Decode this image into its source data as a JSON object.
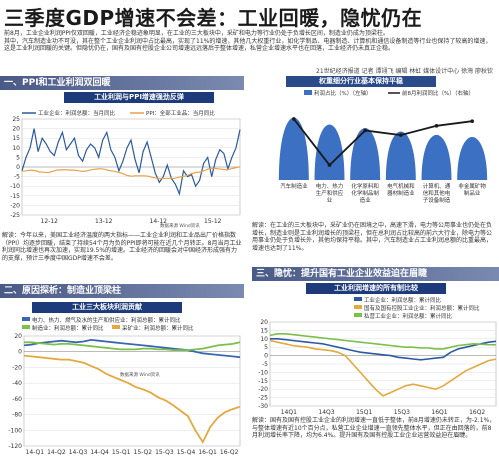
{
  "header": {
    "title": "三季度GDP增速不会差：工业回暖，隐忧仍在",
    "intro": [
      "前8月，工业企业利润PPI仅双回暖，工业经济企稳迹象明显，在工业的三大板块中，采矿和电力等行业仍处于负增长区间，制造业仍成为顶梁柱。",
      "其中，汽车制造业功不可没，其在整个工业企业利润中占比最高，实现了11%的增速，其他几大权重行业，如化学制品、电器制造、计算机和通信设备制造等行业也保持了较高的增速，这是工业利润回暖的关键。但隐忧仍在，国有及国有控股企业公司增速远远落后于整体增速，私营企业增速水平也在回落，工业经济仍未真正企稳。"
    ],
    "byline": "21世纪经济报道 记者 谭翊飞  编辑 林虹 媒体设计中心 徐灣 廖秋钦"
  },
  "section1": {
    "title": "一、PPI和工业利润双回暖",
    "subtitle": "工业利润与PPI增速强劲反弹",
    "legend": [
      "工业企业：利润总额：当月同比",
      "PPI：全部工业品：当月同比"
    ],
    "credit": "数据来源 Wind资讯",
    "note": "解读：今年以来，美国工业经济温度的两大指标——工业企业利润和工业品出厂价格指数（PPI）均逐步回暖，结束了持续54个月为负的PPI即将可能在近几个月转正。8月当月工业利润同比增速也再次加速，实现19.5%的增速。工业经济的回暖会对中国经济形成强有力的支撑，预计三季度中国GDP增速不会差。"
  },
  "section2": {
    "title": "二、原因探析：制造业顶梁柱",
    "subtitle": "工业三大板块利润贡献",
    "legend": [
      "电力、热力、燃气及水的生产和供应业：利润总额：累计同比",
      "制造业：利润总额：累计同比",
      "采矿业：利润总额：累计同比"
    ],
    "credit": "数据来源 Wind资讯"
  },
  "section_share": {
    "title": "权重细分行业基本保持平稳",
    "legend": [
      "利润占比（%）（左轴）",
      "前8月利润同比（%）（右轴）"
    ],
    "note": "解读：在工业的三大板块中，采矿业仍在困境之中，高速下滑，电力等公用事业也仍处在负增长，制造业则是工业利润增长的顶梁柱，但在总利润占比较高的前六大行业，除电力等公用事业仍处于负增长外，其他均保持平稳。其中，汽车制造业占工业利润总额的比重最高，增速也达到了11%。"
  },
  "section3": {
    "title": "三、隐忧：提升国有工业企业效益迫在眉睫",
    "subtitle": "工业利润增速的所有制比较",
    "legend": [
      "工业企业：利润总额：累计同比",
      "国有及国有控股工业企业：利润总额：累计同比",
      "私营工业企业：利润总额：累计同比"
    ],
    "note": "解读：国有及国有控股工业企业的利润增速一直低于整体，前8月增速仍未转正，为-2.1%，与整体增速有近10个百分点，私营工业企业增速一直领先整体水平，但正在由回落的，前8月利润增长率下降，均为6.4%。提升国有及国有控股工业企业运营效益迫在眉睫。"
  },
  "chart_data": [
    {
      "type": "line",
      "title": "工业利润与PPI增速强劲反弹",
      "x_labels": [
        "12-12",
        "13-12",
        "14-12",
        "15-12"
      ],
      "ylim": [
        -25,
        25
      ],
      "y_ticks": [
        25,
        20,
        15,
        10,
        5,
        0,
        -5,
        -10,
        -15,
        -20,
        -25
      ],
      "series": [
        {
          "name": "工业企业：利润总额：当月同比",
          "color": "#2c5aa0",
          "values": [
            -2,
            5,
            10,
            20,
            8,
            15,
            12,
            8,
            6,
            13,
            18,
            9,
            12,
            15,
            6,
            3,
            9,
            12,
            10,
            5,
            14,
            18,
            9,
            5,
            -2,
            3,
            10,
            14,
            4,
            -3,
            8,
            13,
            5,
            -3,
            -8,
            -5,
            1,
            -6,
            -9,
            -14,
            -2,
            -5,
            -4,
            -10,
            -7,
            2,
            5,
            -5,
            4,
            9,
            7,
            -1,
            5,
            10,
            19.5
          ]
        },
        {
          "name": "PPI：全部工业品：当月同比",
          "color": "#e7a14b",
          "values": [
            -2.2,
            -2,
            -1.6,
            -1.9,
            -2.6,
            -2.7,
            -2.9,
            -2.3,
            -1.6,
            -1.5,
            -1.4,
            -1.6,
            -1.6,
            -2,
            -2.3,
            -2,
            -1.4,
            -1.1,
            -0.9,
            -1.2,
            -1.8,
            -2.2,
            -2.7,
            -3.3,
            -4.3,
            -4.8,
            -4.6,
            -4.6,
            -4.6,
            -4.8,
            -5.4,
            -5.9,
            -5.9,
            -5.9,
            -5.9,
            -5.9,
            -5.3,
            -4.9,
            -4.3,
            -3.4,
            -2.8,
            -2.6,
            -1.7,
            -0.8,
            -0.6,
            -1,
            -1.2,
            -1.5,
            -0.9,
            -0.4,
            0.1
          ]
        }
      ]
    },
    {
      "type": "line",
      "title": "工业三大板块利润贡献",
      "x_labels": [
        "14-Q1",
        "14-Q2",
        "14-Q3",
        "14-Q4",
        "15-Q1",
        "15-Q2",
        "15-Q3",
        "15-Q4",
        "16-Q1",
        "16-Q2"
      ],
      "ylim": [
        -120,
        20
      ],
      "y_ticks": [
        20,
        0,
        -20,
        -40,
        -60,
        -80,
        -100,
        -120
      ],
      "series": [
        {
          "name": "电力、热力、燃气及水的生产和供应业：利润总额：累计同比",
          "color": "#3b66b0",
          "values": [
            8,
            9,
            11,
            12,
            13,
            14,
            13,
            12,
            13,
            15,
            14,
            13,
            12,
            11,
            10,
            9,
            8,
            7,
            6,
            5,
            4,
            3,
            2,
            0,
            -2,
            -3,
            -4,
            -5,
            -6,
            -7
          ]
        },
        {
          "name": "制造业：利润总额：累计同比",
          "color": "#7cbf4a",
          "values": [
            12,
            12,
            11,
            10,
            9,
            10,
            10,
            9,
            8,
            7,
            6,
            5,
            4,
            3,
            3,
            3,
            4,
            4,
            3,
            3,
            2,
            2,
            2,
            3,
            4,
            6,
            8,
            9,
            10,
            12
          ]
        },
        {
          "name": "采矿业：利润总额：累计同比",
          "color": "#e3a83e",
          "values": [
            -5,
            -6,
            -7,
            -8,
            -9,
            -10,
            -10,
            -12,
            -14,
            -18,
            -22,
            -28,
            -32,
            -36,
            -40,
            -45,
            -48,
            -52,
            -58,
            -62,
            -68,
            -75,
            -82,
            -100,
            -115,
            -96,
            -84,
            -77,
            -73,
            -70
          ]
        }
      ]
    },
    {
      "type": "bar",
      "title": "权重细分行业基本保持平稳",
      "categories": [
        "汽车制造业",
        "电力、热力生产和供应业",
        "化学原料和化学制品制造业",
        "电气机械和器材制造业",
        "计算机、通信和其他电子设备制造业",
        "非金属矿物制品业"
      ],
      "series": [
        {
          "name": "利润占比（%）（左轴）",
          "values": [
            9,
            8,
            7.5,
            7,
            6.5,
            6.2
          ]
        },
        {
          "name": "前8月利润同比（%）（右轴）",
          "values": [
            11,
            -9,
            6,
            4,
            8,
            10
          ]
        }
      ]
    },
    {
      "type": "line",
      "title": "工业利润增速的所有制比较",
      "x_labels": [
        "14Q1",
        "14Q3",
        "15Q1",
        "15Q3",
        "16Q1",
        "16Q2"
      ],
      "ylim": [
        -30,
        20
      ],
      "y_ticks": [
        20,
        15,
        10,
        5,
        0,
        -5,
        -10,
        -15,
        -20,
        -25,
        -30
      ],
      "series": [
        {
          "name": "工业企业：利润总额：累计同比",
          "color": "#2c5aa0",
          "values": [
            10,
            10,
            9.5,
            9,
            8.5,
            8,
            7.5,
            7,
            6,
            5,
            4,
            3,
            2,
            1.5,
            1,
            0.5,
            0,
            -1,
            -1.5,
            -2,
            -2.5,
            -2,
            -1.5,
            -1,
            2,
            4,
            5,
            6,
            7,
            8,
            8.5
          ]
        },
        {
          "name": "国有及国有控股工业企业：利润总额：累计同比",
          "color": "#e3a83e",
          "values": [
            9,
            8,
            7,
            6,
            5.5,
            5,
            4,
            3.5,
            3,
            2,
            0,
            -5,
            -10,
            -15,
            -20,
            -24,
            -22,
            -20,
            -18,
            -17,
            -18,
            -19,
            -20,
            -18,
            -15,
            -12,
            -9,
            -7,
            -5,
            -3,
            -2.1
          ]
        },
        {
          "name": "私营工业企业：利润总额：累计同比",
          "color": "#7cbf4a",
          "values": [
            12,
            13,
            13,
            12.5,
            12,
            11.5,
            11,
            10.5,
            10,
            9.5,
            9,
            8.5,
            8,
            7.5,
            7,
            6.5,
            6,
            5.5,
            5,
            5,
            4.5,
            4.5,
            4,
            4,
            5,
            6,
            6.5,
            7,
            6.8,
            6.5,
            6.4
          ]
        }
      ]
    }
  ]
}
